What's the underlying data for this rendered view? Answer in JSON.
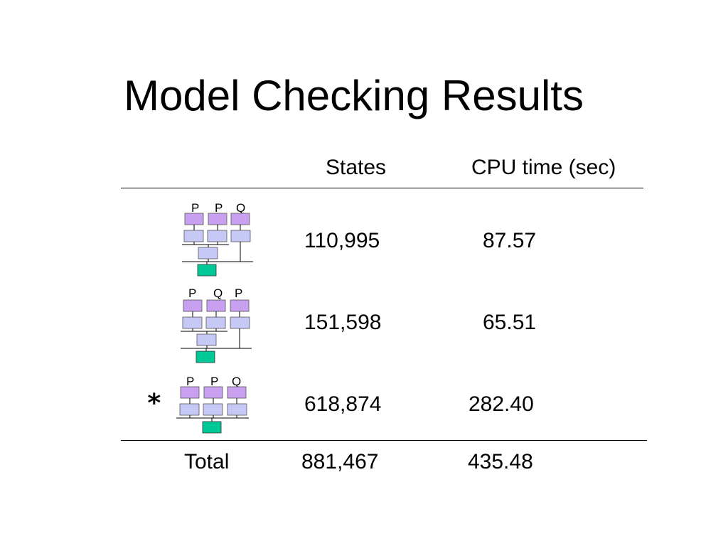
{
  "slide": {
    "title": "Model Checking Results"
  },
  "table": {
    "headers": {
      "states": "States",
      "cpu_time": "CPU time (sec)"
    },
    "rows": [
      {
        "label_letters": [
          "P",
          "P",
          "Q"
        ],
        "states": "110,995",
        "cpu_time": "87.57",
        "marked": false
      },
      {
        "label_letters": [
          "P",
          "Q",
          "P"
        ],
        "states": "151,598",
        "cpu_time": "65.51",
        "marked": false
      },
      {
        "label_letters": [
          "P",
          "P",
          "Q"
        ],
        "states": "618,874",
        "cpu_time": "282.40",
        "marked": true,
        "marker": "*"
      }
    ],
    "total": {
      "label": "Total",
      "states": "881,467",
      "cpu_time": "435.48"
    }
  },
  "colors": {
    "processor_box": "#c99ff0",
    "cache_box": "#c6c8f5",
    "memory_box": "#00c896",
    "line": "#000000"
  }
}
